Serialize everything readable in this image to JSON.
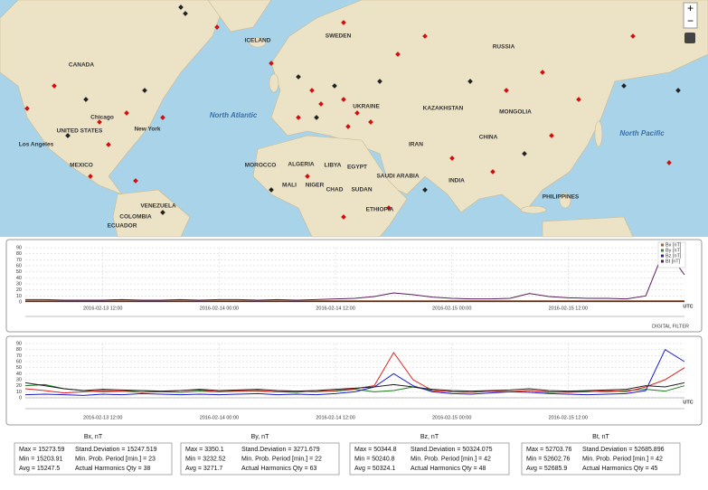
{
  "map": {
    "zoom_in": "+",
    "zoom_out": "−",
    "labels": [
      "CANADA",
      "UNITED STATES",
      "MEXICO",
      "North Atlantic",
      "North Pacific",
      "RUSSIA",
      "ICELAND",
      "SWEDEN",
      "KAZAKHSTAN",
      "MONGOLIA",
      "CHINA",
      "ALGERIA",
      "LIBYA",
      "EGYPT",
      "MALI",
      "NIGER",
      "CHAD",
      "SUDAN",
      "ETHIOPIA",
      "SAUDI ARABIA",
      "INDIA",
      "IRAN",
      "MOROCCO",
      "UKRAINE",
      "VENEZUELA",
      "COLOMBIA",
      "ECUADOR",
      "PHILIPPINES",
      "Los Angeles",
      "Chicago",
      "New York"
    ]
  },
  "chart_data": [
    {
      "type": "line",
      "x_label": "UTC",
      "annotation": "DIGITAL FILTER",
      "grid": true,
      "legend": "top-right",
      "x": [
        0,
        2,
        4,
        6,
        8,
        10,
        12,
        14,
        16,
        18,
        20,
        22,
        24,
        26,
        28,
        30,
        32,
        34,
        36,
        38,
        40,
        42,
        44,
        46,
        48,
        50,
        52,
        54,
        56,
        58,
        60,
        62,
        64,
        66,
        68
      ],
      "xlim": [
        0,
        68
      ],
      "xticks": [
        {
          "value": 8,
          "label": "2016-02-13 12:00"
        },
        {
          "value": 20,
          "label": "2016-02-14 00:00"
        },
        {
          "value": 32,
          "label": "2016-02-14 12:00"
        },
        {
          "value": 44,
          "label": "2016-02-15 00:00"
        },
        {
          "value": 56,
          "label": "2016-02-15 12:00"
        }
      ],
      "ylim": [
        0,
        90
      ],
      "yticks": [
        0,
        10,
        20,
        30,
        40,
        50,
        60,
        70,
        80,
        90
      ],
      "series": [
        {
          "name": "Bx [nT]",
          "color": "#b05a20",
          "values": [
            2,
            2,
            2,
            2,
            2,
            2,
            2,
            2,
            2,
            2,
            2,
            2,
            2,
            2,
            2,
            2,
            2,
            2,
            2,
            2,
            2,
            2,
            2,
            2,
            2,
            2,
            2,
            2,
            2,
            2,
            2,
            2,
            2,
            2,
            2
          ]
        },
        {
          "name": "By [nT]",
          "color": "#2a8a2a",
          "values": [
            1,
            1,
            1,
            1,
            1,
            1,
            1,
            1,
            1,
            1,
            1,
            1,
            1,
            1,
            1,
            1,
            1,
            1,
            1,
            1,
            1,
            1,
            1,
            1,
            1,
            1,
            1,
            1,
            1,
            1,
            1,
            1,
            1,
            1,
            1
          ]
        },
        {
          "name": "Bz [nT]",
          "color": "#2020c0",
          "values": [
            1,
            1,
            1,
            1,
            1,
            1,
            1,
            1,
            1,
            1,
            1,
            1,
            1,
            1,
            1,
            1,
            1,
            1,
            1,
            1,
            1,
            1,
            1,
            1,
            1,
            1,
            1,
            1,
            1,
            1,
            1,
            1,
            1,
            1,
            1
          ]
        },
        {
          "name": "Bt [nT]",
          "color": "#5a1a5a",
          "values": [
            4,
            4,
            3,
            3,
            3,
            4,
            3,
            3,
            4,
            3,
            4,
            4,
            3,
            4,
            3,
            4,
            5,
            6,
            9,
            15,
            12,
            8,
            6,
            5,
            5,
            6,
            14,
            9,
            7,
            6,
            6,
            5,
            10,
            90,
            45
          ]
        }
      ]
    },
    {
      "type": "line",
      "x_label": "UTC",
      "grid": true,
      "x": [
        0,
        2,
        4,
        6,
        8,
        10,
        12,
        14,
        16,
        18,
        20,
        22,
        24,
        26,
        28,
        30,
        32,
        34,
        36,
        38,
        40,
        42,
        44,
        46,
        48,
        50,
        52,
        54,
        56,
        58,
        60,
        62,
        64,
        66,
        68
      ],
      "xlim": [
        0,
        68
      ],
      "xticks": [
        {
          "value": 8,
          "label": "2016-02-13 12:00"
        },
        {
          "value": 20,
          "label": "2016-02-14 00:00"
        },
        {
          "value": 32,
          "label": "2016-02-14 12:00"
        },
        {
          "value": 44,
          "label": "2016-02-15 00:00"
        },
        {
          "value": 56,
          "label": "2016-02-15 12:00"
        }
      ],
      "ylim": [
        0,
        90
      ],
      "yticks": [
        0,
        10,
        20,
        30,
        40,
        50,
        60,
        70,
        80,
        90
      ],
      "series": [
        {
          "color": "#1a7a1a",
          "values": [
            20,
            22,
            15,
            12,
            10,
            11,
            12,
            10,
            9,
            11,
            10,
            12,
            11,
            10,
            9,
            12,
            11,
            14,
            10,
            12,
            18,
            12,
            10,
            9,
            11,
            10,
            12,
            9,
            10,
            11,
            10,
            12,
            14,
            11,
            20
          ]
        },
        {
          "color": "#e02020",
          "values": [
            15,
            12,
            8,
            10,
            12,
            11,
            9,
            10,
            12,
            13,
            10,
            11,
            12,
            10,
            11,
            10,
            12,
            15,
            20,
            75,
            30,
            12,
            10,
            9,
            11,
            10,
            12,
            10,
            9,
            10,
            12,
            10,
            18,
            30,
            50
          ]
        },
        {
          "color": "#1a1ad0",
          "values": [
            5,
            6,
            5,
            4,
            6,
            5,
            7,
            6,
            5,
            6,
            5,
            6,
            7,
            5,
            6,
            5,
            7,
            10,
            18,
            40,
            20,
            10,
            7,
            6,
            8,
            10,
            9,
            7,
            6,
            5,
            6,
            7,
            12,
            80,
            60
          ]
        },
        {
          "color": "#222222",
          "values": [
            25,
            20,
            15,
            12,
            14,
            13,
            12,
            11,
            12,
            14,
            12,
            13,
            14,
            12,
            11,
            12,
            14,
            16,
            18,
            22,
            18,
            14,
            12,
            11,
            12,
            13,
            15,
            12,
            11,
            12,
            13,
            14,
            20,
            18,
            25
          ]
        }
      ]
    }
  ],
  "stats": [
    {
      "title": "Bx, nT",
      "color": "#1a7a1a",
      "lines": [
        "Max = 15273.59",
        "Stand.Deviation = 15247.519",
        "Min = 15203.91",
        "Min. Prob. Period [min.] = 23",
        "Avg = 15247.5",
        "Actual Harmonics Qty = 38"
      ]
    },
    {
      "title": "By, nT",
      "color": "#e02020",
      "lines": [
        "Max = 3350.1",
        "Stand.Deviation = 3271.679",
        "Min = 3232.52",
        "Min. Prob. Period [min.] = 22",
        "Avg = 3271.7",
        "Actual Harmonics Qty = 63"
      ]
    },
    {
      "title": "Bz, nT",
      "color": "#1a1ad0",
      "lines": [
        "Max = 50344.8",
        "Stand.Deviation = 50324.075",
        "Min = 50240.8",
        "Min. Prob. Period [min.] = 42",
        "Avg = 50324.1",
        "Actual Harmonics Qty = 48"
      ]
    },
    {
      "title": "Bt, nT",
      "color": "#1a1ad0",
      "lines": [
        "Max = 52703.76",
        "Stand.Deviation = 52685.896",
        "Min = 52602.76",
        "Min. Prob. Period [min.] = 42",
        "Avg = 52685.9",
        "Actual Harmonics Qty = 45"
      ]
    }
  ]
}
